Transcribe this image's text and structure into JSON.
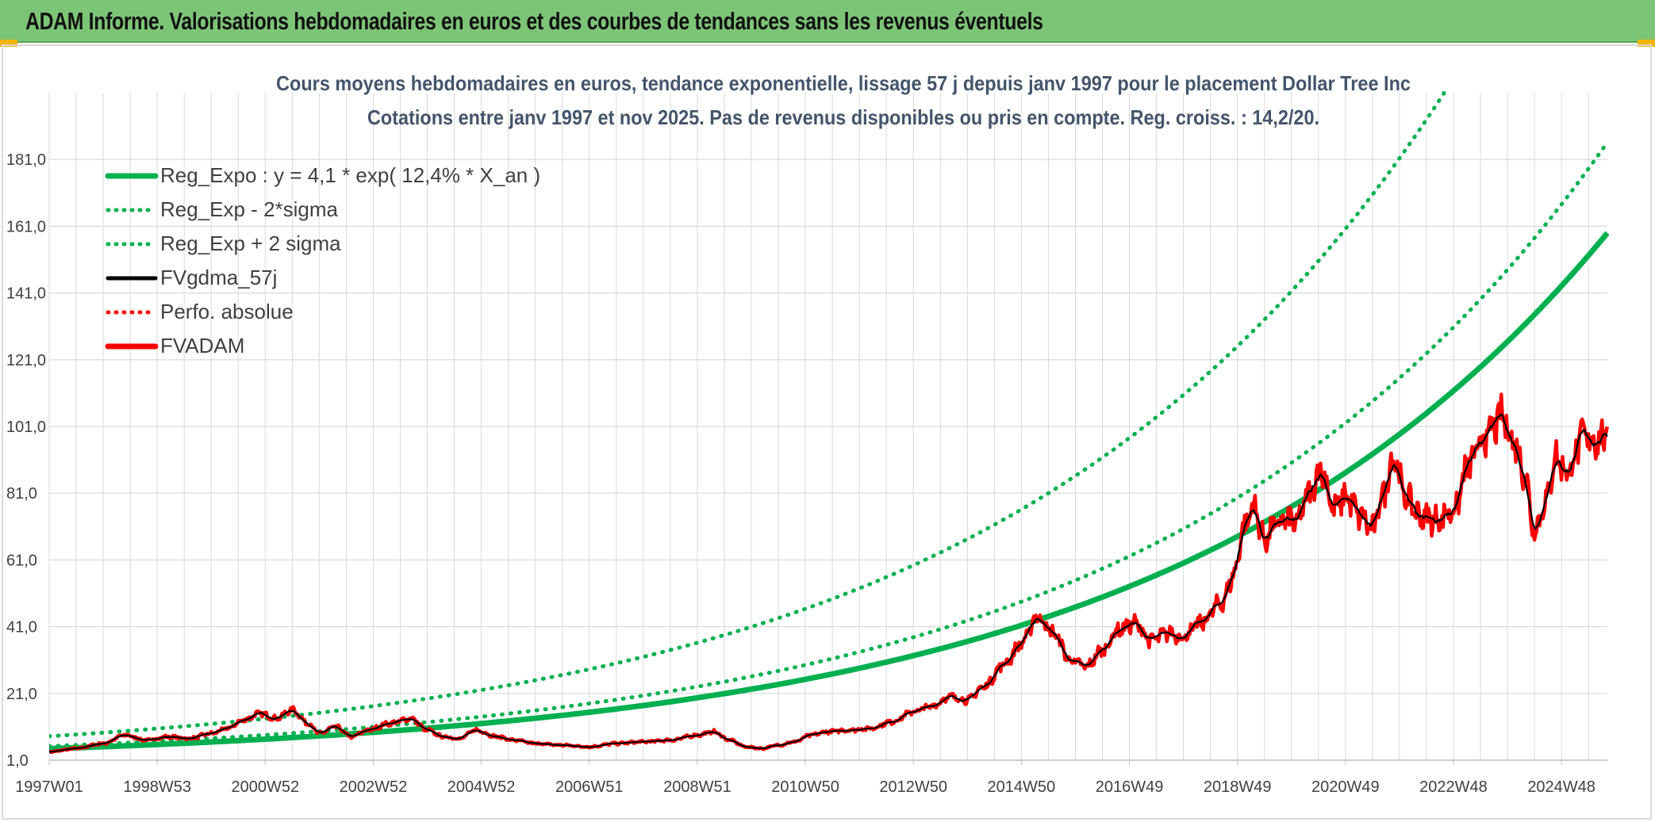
{
  "banner": {
    "title": "ADAM Informe. Valorisations hebdomadaires en euros et des courbes de tendances sans les revenus éventuels"
  },
  "colors": {
    "banner_bg": "#7cc576",
    "green": "#00b050",
    "red": "#ff0000",
    "black": "#000000",
    "grid": "#d9d9d9",
    "text": "#404040",
    "title_text": "#44546a",
    "corner": "#f0b400"
  },
  "chart_data": {
    "type": "line",
    "title": [
      "Cours moyens hebdomadaires en euros, tendance exponentielle, lissage 57 j depuis janv 1997 pour le placement Dollar Tree Inc",
      "Cotations entre janv 1997 et nov 2025. Pas de revenus disponibles ou pris en compte. Reg. croiss. : 14,2/20."
    ],
    "xlabel": "",
    "ylabel": "",
    "x_range": [
      1997.0,
      2025.85
    ],
    "ylim": [
      1,
      201
    ],
    "y_ticks": [
      "1,0",
      "21,0",
      "41,0",
      "61,0",
      "81,0",
      "101,0",
      "121,0",
      "141,0",
      "161,0",
      "181,0"
    ],
    "x_ticks": [
      {
        "label": "1997W01",
        "x": 1997.0
      },
      {
        "label": "1998W53",
        "x": 1999.0
      },
      {
        "label": "2000W52",
        "x": 2001.0
      },
      {
        "label": "2002W52",
        "x": 2003.0
      },
      {
        "label": "2004W52",
        "x": 2005.0
      },
      {
        "label": "2006W51",
        "x": 2007.0
      },
      {
        "label": "2008W51",
        "x": 2009.0
      },
      {
        "label": "2010W50",
        "x": 2011.0
      },
      {
        "label": "2012W50",
        "x": 2013.0
      },
      {
        "label": "2014W50",
        "x": 2015.0
      },
      {
        "label": "2016W49",
        "x": 2017.0
      },
      {
        "label": "2018W49",
        "x": 2019.0
      },
      {
        "label": "2020W49",
        "x": 2021.0
      },
      {
        "label": "2022W48",
        "x": 2023.0
      },
      {
        "label": "2024W48",
        "x": 2025.0
      }
    ],
    "grid": true,
    "legend_position": "top-left",
    "series": [
      {
        "name": "Reg_Expo : y = 4,1 * exp( 12,4% *  X_an )",
        "style": "solid-thick",
        "color": "#00b050",
        "trend": {
          "a": 4.1,
          "b": 0.124,
          "x0": 1996.35
        }
      },
      {
        "name": "Reg_Exp - 2*sigma",
        "style": "dotted",
        "color": "#00b050",
        "trend": {
          "a": 1.0,
          "b": 0.124,
          "x0": 1983.7
        }
      },
      {
        "name": "Reg_Exp + 2 sigma",
        "style": "dotted",
        "color": "#00b050",
        "trend": {
          "a": 12.0,
          "b": 0.124,
          "x0": 2000.1
        }
      },
      {
        "name": "FVgdma_57j",
        "style": "solid",
        "color": "#000000"
      },
      {
        "name": "Perfo. absolue",
        "style": "dotted",
        "color": "#ff0000"
      },
      {
        "name": "FVADAM",
        "style": "solid-thick",
        "color": "#ff0000"
      }
    ],
    "fvadam_points": [
      [
        1997.0,
        3.5
      ],
      [
        1997.5,
        4.5
      ],
      [
        1998.0,
        6.0
      ],
      [
        1998.4,
        8.5
      ],
      [
        1998.8,
        7.0
      ],
      [
        1999.2,
        8.0
      ],
      [
        1999.6,
        7.5
      ],
      [
        2000.0,
        9.0
      ],
      [
        2000.3,
        10.5
      ],
      [
        2000.6,
        13.0
      ],
      [
        2000.9,
        15.0
      ],
      [
        2001.2,
        13.5
      ],
      [
        2001.5,
        16.0
      ],
      [
        2001.8,
        12.0
      ],
      [
        2002.0,
        9.0
      ],
      [
        2002.3,
        11.0
      ],
      [
        2002.6,
        8.0
      ],
      [
        2002.9,
        10.0
      ],
      [
        2003.3,
        12.0
      ],
      [
        2003.7,
        13.5
      ],
      [
        2004.0,
        10.0
      ],
      [
        2004.3,
        8.0
      ],
      [
        2004.6,
        7.5
      ],
      [
        2004.9,
        10.0
      ],
      [
        2005.3,
        8.0
      ],
      [
        2005.6,
        7.0
      ],
      [
        2006.0,
        6.0
      ],
      [
        2006.5,
        5.5
      ],
      [
        2007.0,
        5.0
      ],
      [
        2007.5,
        6.0
      ],
      [
        2008.0,
        6.5
      ],
      [
        2008.5,
        7.0
      ],
      [
        2009.0,
        8.5
      ],
      [
        2009.3,
        9.5
      ],
      [
        2009.6,
        7.0
      ],
      [
        2009.9,
        5.0
      ],
      [
        2010.2,
        4.5
      ],
      [
        2010.5,
        5.5
      ],
      [
        2010.8,
        6.5
      ],
      [
        2011.1,
        8.5
      ],
      [
        2011.4,
        9.5
      ],
      [
        2011.8,
        10.0
      ],
      [
        2012.2,
        10.5
      ],
      [
        2012.6,
        12.5
      ],
      [
        2013.0,
        15.5
      ],
      [
        2013.3,
        17.0
      ],
      [
        2013.7,
        20.0
      ],
      [
        2014.0,
        19.0
      ],
      [
        2014.3,
        23.0
      ],
      [
        2014.7,
        30.0
      ],
      [
        2015.0,
        36.0
      ],
      [
        2015.3,
        44.0
      ],
      [
        2015.6,
        39.0
      ],
      [
        2015.9,
        31.0
      ],
      [
        2016.2,
        29.0
      ],
      [
        2016.5,
        34.0
      ],
      [
        2016.8,
        40.0
      ],
      [
        2017.1,
        42.0
      ],
      [
        2017.4,
        37.0
      ],
      [
        2017.7,
        39.0
      ],
      [
        2018.0,
        38.0
      ],
      [
        2018.3,
        42.0
      ],
      [
        2018.7,
        48.0
      ],
      [
        2018.95,
        57.0
      ],
      [
        2019.1,
        70.0
      ],
      [
        2019.3,
        77.0
      ],
      [
        2019.5,
        67.0
      ],
      [
        2019.7,
        71.0
      ],
      [
        2019.9,
        73.0
      ],
      [
        2020.1,
        72.0
      ],
      [
        2020.3,
        80.0
      ],
      [
        2020.55,
        88.0
      ],
      [
        2020.8,
        76.0
      ],
      [
        2021.0,
        80.0
      ],
      [
        2021.3,
        74.0
      ],
      [
        2021.5,
        70.0
      ],
      [
        2021.7,
        81.0
      ],
      [
        2021.9,
        92.0
      ],
      [
        2022.1,
        80.0
      ],
      [
        2022.4,
        74.0
      ],
      [
        2022.7,
        73.0
      ],
      [
        2023.0,
        76.0
      ],
      [
        2023.3,
        90.0
      ],
      [
        2023.6,
        98.0
      ],
      [
        2023.9,
        104.0
      ],
      [
        2024.1,
        97.0
      ],
      [
        2024.3,
        88.0
      ],
      [
        2024.5,
        70.0
      ],
      [
        2024.7,
        78.0
      ],
      [
        2024.9,
        92.0
      ],
      [
        2025.1,
        87.0
      ],
      [
        2025.4,
        98.0
      ],
      [
        2025.6,
        97.0
      ],
      [
        2025.85,
        98.0
      ]
    ]
  }
}
